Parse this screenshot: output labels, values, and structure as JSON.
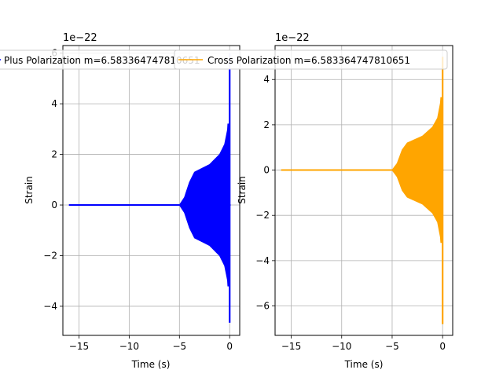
{
  "chart_data": [
    {
      "type": "line",
      "title": "",
      "xlabel": "Time (s)",
      "ylabel": "Strain",
      "offset_text": "1e−22",
      "xlim": [
        -16.6,
        1.0
      ],
      "ylim": [
        -5.15,
        6.3
      ],
      "xticks": [
        -15,
        -10,
        -5,
        0
      ],
      "xtick_labels": [
        "−15",
        "−10",
        "−5",
        "0"
      ],
      "yticks": [
        -4,
        -2,
        0,
        2,
        4,
        6
      ],
      "ytick_labels": [
        "−4",
        "−2",
        "0",
        "2",
        "4",
        "6"
      ],
      "grid": true,
      "legend": "top-center",
      "series": [
        {
          "name": "Plus Polarization m=6.583364747810651",
          "color": "#0000ff",
          "x_start": -16.0,
          "t_chirp_start": -5.0,
          "t_merger": 0.0,
          "x_end": 0.1,
          "envelope": [
            [
              -5.0,
              0.0
            ],
            [
              -4.5,
              0.3
            ],
            [
              -4.0,
              0.9
            ],
            [
              -3.5,
              1.3
            ],
            [
              -3.0,
              1.4
            ],
            [
              -2.0,
              1.6
            ],
            [
              -1.0,
              2.0
            ],
            [
              -0.5,
              2.4
            ],
            [
              -0.2,
              3.0
            ],
            [
              -0.05,
              4.5
            ],
            [
              0.0,
              6.0
            ]
          ],
          "min_value": -4.65,
          "max_value": 6.0
        }
      ]
    },
    {
      "type": "line",
      "title": "",
      "xlabel": "Time (s)",
      "ylabel": "Strain",
      "offset_text": "1e−22",
      "xlim": [
        -16.6,
        1.0
      ],
      "ylim": [
        -7.3,
        5.5
      ],
      "xticks": [
        -15,
        -10,
        -5,
        0
      ],
      "xtick_labels": [
        "−15",
        "−10",
        "−5",
        "0"
      ],
      "yticks": [
        -6,
        -4,
        -2,
        0,
        2,
        4
      ],
      "ytick_labels": [
        "−6",
        "−4",
        "−2",
        "0",
        "2",
        "4"
      ],
      "grid": true,
      "legend": "top-center",
      "series": [
        {
          "name": "Cross Polarization m=6.583364747810651",
          "color": "#ffa500",
          "x_start": -16.0,
          "t_chirp_start": -5.0,
          "t_merger": 0.0,
          "x_end": 0.1,
          "envelope": [
            [
              -5.0,
              0.0
            ],
            [
              -4.5,
              0.3
            ],
            [
              -4.0,
              0.9
            ],
            [
              -3.5,
              1.2
            ],
            [
              -3.0,
              1.3
            ],
            [
              -2.0,
              1.5
            ],
            [
              -1.0,
              1.9
            ],
            [
              -0.5,
              2.3
            ],
            [
              -0.2,
              3.0
            ],
            [
              -0.05,
              4.4
            ],
            [
              0.0,
              5.0
            ]
          ],
          "min_value": -6.8,
          "max_value": 5.0
        }
      ]
    }
  ]
}
